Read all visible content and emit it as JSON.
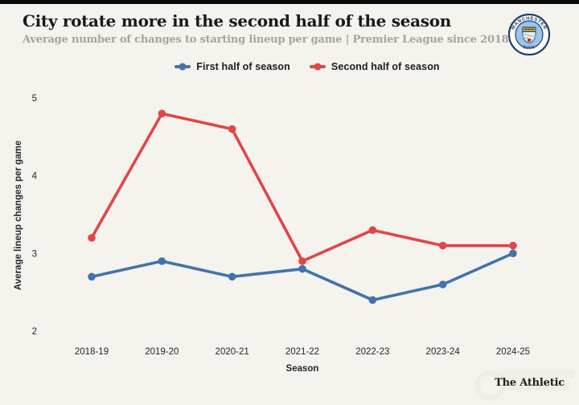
{
  "page": {
    "background_color": "#f5f3ee",
    "top_bar_color": "#0c0c0c"
  },
  "header": {
    "badge": {
      "name": "manchester-city-crest",
      "text_top": "MANCHESTER",
      "text_bottom": "CITY",
      "ring_color": "#1d3d6b",
      "inner_color": "#98c5e9",
      "ship_color": "#d9a62e",
      "rose_color": "#c2242f"
    }
  },
  "footer": {
    "brand": "The Athletic"
  },
  "chart_data": {
    "type": "line",
    "title": "City rotate more in the second half of the season",
    "subtitle": "Average number of changes to starting lineup per game | Premier League since 2018-19",
    "categories": [
      "2018-19",
      "2019-20",
      "2020-21",
      "2021-22",
      "2022-23",
      "2023-24",
      "2024-25"
    ],
    "series": [
      {
        "name": "First half of season",
        "color": "#4273ac",
        "values": [
          2.7,
          2.9,
          2.7,
          2.8,
          2.4,
          2.6,
          3.0
        ]
      },
      {
        "name": "Second half of season",
        "color": "#e04646",
        "values": [
          3.2,
          4.8,
          4.6,
          2.9,
          3.3,
          3.1,
          3.1
        ]
      }
    ],
    "xlabel": "Season",
    "ylabel": "Average lineup changes per game",
    "yticks": [
      2,
      3,
      4,
      5
    ],
    "ylim": [
      2,
      5
    ],
    "grid": false,
    "legend_position": "top",
    "tick_color": "#26262a"
  }
}
